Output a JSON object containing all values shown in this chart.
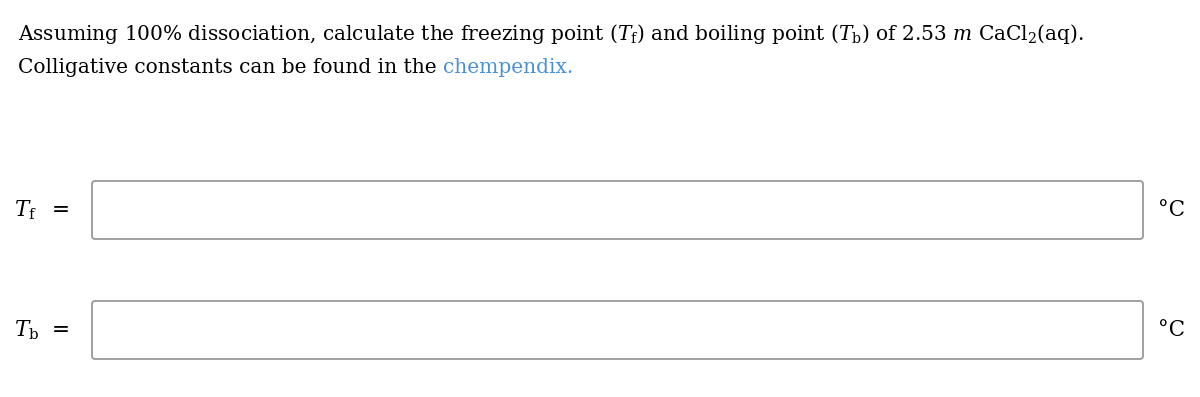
{
  "line1": "Assuming 100% dissociation, calculate the freezing point ($T_\\mathrm{f}$) and boiling point ($T_\\mathrm{b}$) of 2.53 $m$ CaCl$_2$(aq).",
  "line2_prefix": "Colligative constants can be found in the ",
  "line2_link": "chempendix.",
  "line2_link_color": "#4a90d9",
  "unit": "°C",
  "background_color": "#ffffff",
  "text_color": "#000000",
  "box_edge_color": "#999999",
  "font_size": 14.5,
  "label_font_size": 15.5
}
